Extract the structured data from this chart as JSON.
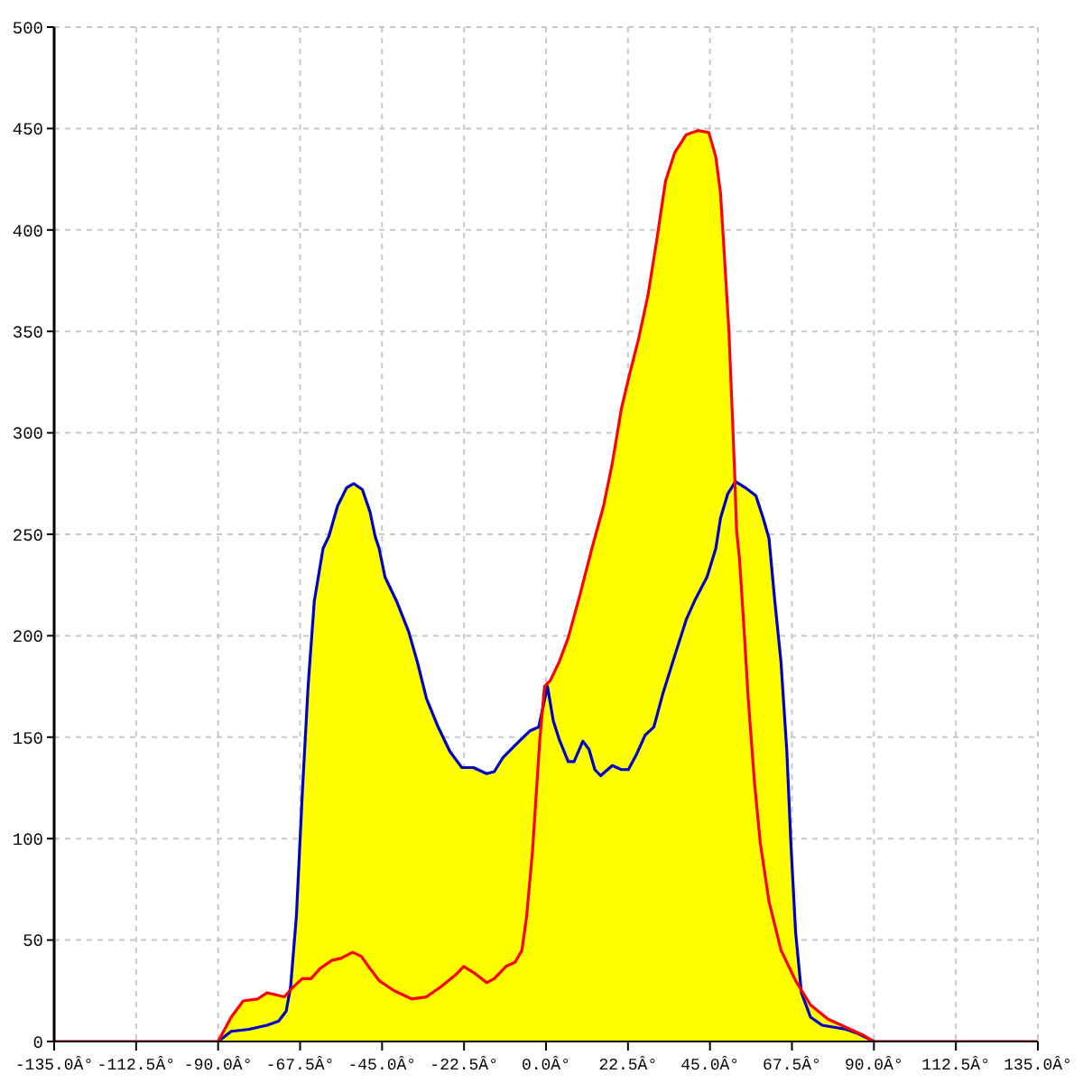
{
  "chart_data": {
    "type": "area",
    "xlim": [
      -135,
      135
    ],
    "xticks": [
      {
        "value": -135,
        "label": "-135.0Â°"
      },
      {
        "value": -112.5,
        "label": "-112.5Â°"
      },
      {
        "value": -90,
        "label": "-90.0Â°"
      },
      {
        "value": -67.5,
        "label": "-67.5Â°"
      },
      {
        "value": -45,
        "label": "-45.0Â°"
      },
      {
        "value": -22.5,
        "label": "-22.5Â°"
      },
      {
        "value": 0,
        "label": "0.0Â°"
      },
      {
        "value": 22.5,
        "label": "22.5Â°"
      },
      {
        "value": 45,
        "label": "45.0Â°"
      },
      {
        "value": 67.5,
        "label": "67.5Â°"
      },
      {
        "value": 90,
        "label": "90.0Â°"
      },
      {
        "value": 112.5,
        "label": "112.5Â°"
      },
      {
        "value": 135,
        "label": "135.0Â°"
      }
    ],
    "ylim": [
      0,
      500
    ],
    "yticks": [
      0,
      50,
      100,
      150,
      200,
      250,
      300,
      350,
      400,
      450,
      500
    ],
    "grid": true,
    "series": [
      {
        "color": "#ffff00",
        "x": [
          -90,
          -86.4,
          -83.1,
          -79.1,
          -76.6,
          -74.2,
          -71.8,
          -70.1,
          -68.5,
          -66.9,
          -65.3,
          -63.6,
          -61.2,
          -59.6,
          -57.2,
          -54.7,
          -52.8,
          -50.4,
          -48.3,
          -46.9,
          -45.8,
          -44.2,
          -41,
          -37.7,
          -35.3,
          -32.8,
          -29.6,
          -26.4,
          -23.1,
          -19.9,
          -16.3,
          -14.2,
          -11.8,
          -8.5,
          -4.5,
          -2,
          -0.4,
          1.2,
          3.6,
          6.1,
          9.3,
          12.6,
          15.8,
          18.2,
          20.7,
          23.1,
          25.5,
          28,
          30.4,
          32.8,
          35.3,
          38.5,
          41.7,
          44.7,
          46.6,
          47.9,
          49,
          50.2,
          51.2,
          51.8,
          52,
          54.7,
          57.6,
          59.6,
          61.2,
          62.8,
          64.5,
          66.1,
          67.2,
          68.5,
          70,
          72.6,
          77.4,
          82.3,
          87.2,
          90
        ],
        "values": [
          0,
          12,
          20,
          21,
          24,
          23,
          22,
          27,
          62,
          122,
          175,
          217,
          243,
          249,
          264,
          273,
          275,
          272,
          261,
          249,
          243,
          229,
          217,
          202,
          187,
          169,
          155,
          143,
          135,
          135,
          132,
          133,
          140,
          146,
          153,
          155,
          175,
          178,
          187,
          199,
          220,
          243,
          264,
          285,
          312,
          330,
          347,
          368,
          395,
          424,
          438,
          447,
          449,
          448,
          436,
          418,
          386,
          350,
          306,
          279,
          276,
          273,
          269,
          258,
          248,
          217,
          187,
          143,
          98,
          54,
          26,
          18,
          11,
          7,
          3,
          0
        ]
      },
      {
        "type": "line",
        "color": "#0000cc",
        "x": [
          -90,
          -86.4,
          -81.5,
          -76.6,
          -73.4,
          -71.3,
          -70.1,
          -68.5,
          -66.9,
          -65.3,
          -63.6,
          -61.2,
          -59.6,
          -57.2,
          -54.7,
          -52.8,
          -50.4,
          -48.3,
          -46.9,
          -45.8,
          -44.2,
          -41,
          -37.7,
          -35.3,
          -32.8,
          -29.6,
          -26.4,
          -23.1,
          -19.9,
          -16.3,
          -14.2,
          -11.8,
          -8.5,
          -4.5,
          -2,
          0.4,
          2,
          3.6,
          6.1,
          7.7,
          10.1,
          11.8,
          13.4,
          15,
          18.2,
          20.7,
          22.6,
          24.7,
          27.2,
          29.6,
          32,
          35.3,
          38.5,
          41,
          44.2,
          46.6,
          47.9,
          49.9,
          52,
          54.7,
          57.6,
          59.6,
          61.2,
          62.8,
          64.5,
          66.1,
          67.2,
          68.5,
          70.1,
          72.6,
          75.8,
          79.1,
          82.3,
          85.5,
          90
        ],
        "values": [
          0,
          5,
          6,
          8,
          10,
          15,
          27,
          62,
          122,
          175,
          217,
          243,
          249,
          264,
          273,
          275,
          272,
          261,
          249,
          243,
          229,
          217,
          202,
          187,
          169,
          155,
          143,
          135,
          135,
          132,
          133,
          140,
          146,
          153,
          155,
          175,
          158,
          149,
          138,
          138,
          148,
          144,
          134,
          131,
          136,
          134,
          134,
          141,
          151,
          155,
          171,
          190,
          208,
          218,
          229,
          243,
          258,
          270,
          276,
          273,
          269,
          258,
          248,
          217,
          187,
          143,
          98,
          54,
          24,
          12,
          8,
          7,
          6,
          4,
          0
        ]
      },
      {
        "type": "line",
        "color": "#ff0000",
        "x": [
          -135,
          -90,
          -86.4,
          -83.1,
          -79.1,
          -76.6,
          -74.2,
          -71.8,
          -69.3,
          -66.9,
          -64.5,
          -62,
          -58.8,
          -56.3,
          -53.1,
          -50.7,
          -48.3,
          -45.8,
          -41.7,
          -36.9,
          -32.8,
          -28.8,
          -24.7,
          -22.6,
          -19.9,
          -16.3,
          -14.2,
          -11,
          -8.5,
          -6.6,
          -5.3,
          -3.7,
          -1.7,
          -0.4,
          1.2,
          3.6,
          6.1,
          9.3,
          12.6,
          15.8,
          18.2,
          20.7,
          23.1,
          25.5,
          28,
          30.4,
          32.8,
          35.3,
          38.5,
          41.7,
          44.7,
          46.6,
          47.9,
          49,
          50.2,
          51.2,
          51.8,
          52.3,
          53.1,
          54.4,
          55.5,
          57.2,
          58.8,
          61.2,
          64.5,
          68.5,
          72.6,
          77.4,
          82.3,
          87.2,
          90,
          135
        ],
        "values": [
          0,
          0,
          12,
          20,
          21,
          24,
          23,
          22,
          27,
          31,
          31,
          36,
          40,
          41,
          44,
          42,
          36,
          30,
          25,
          21,
          22,
          27,
          33,
          37,
          34,
          29,
          31,
          37,
          39,
          45,
          62,
          94,
          149,
          175,
          178,
          187,
          199,
          220,
          243,
          264,
          285,
          312,
          330,
          347,
          368,
          395,
          424,
          438,
          447,
          449,
          448,
          436,
          418,
          386,
          350,
          306,
          279,
          252,
          238,
          202,
          169,
          128,
          98,
          69,
          45,
          30,
          18,
          11,
          7,
          3,
          0,
          0
        ]
      }
    ]
  }
}
